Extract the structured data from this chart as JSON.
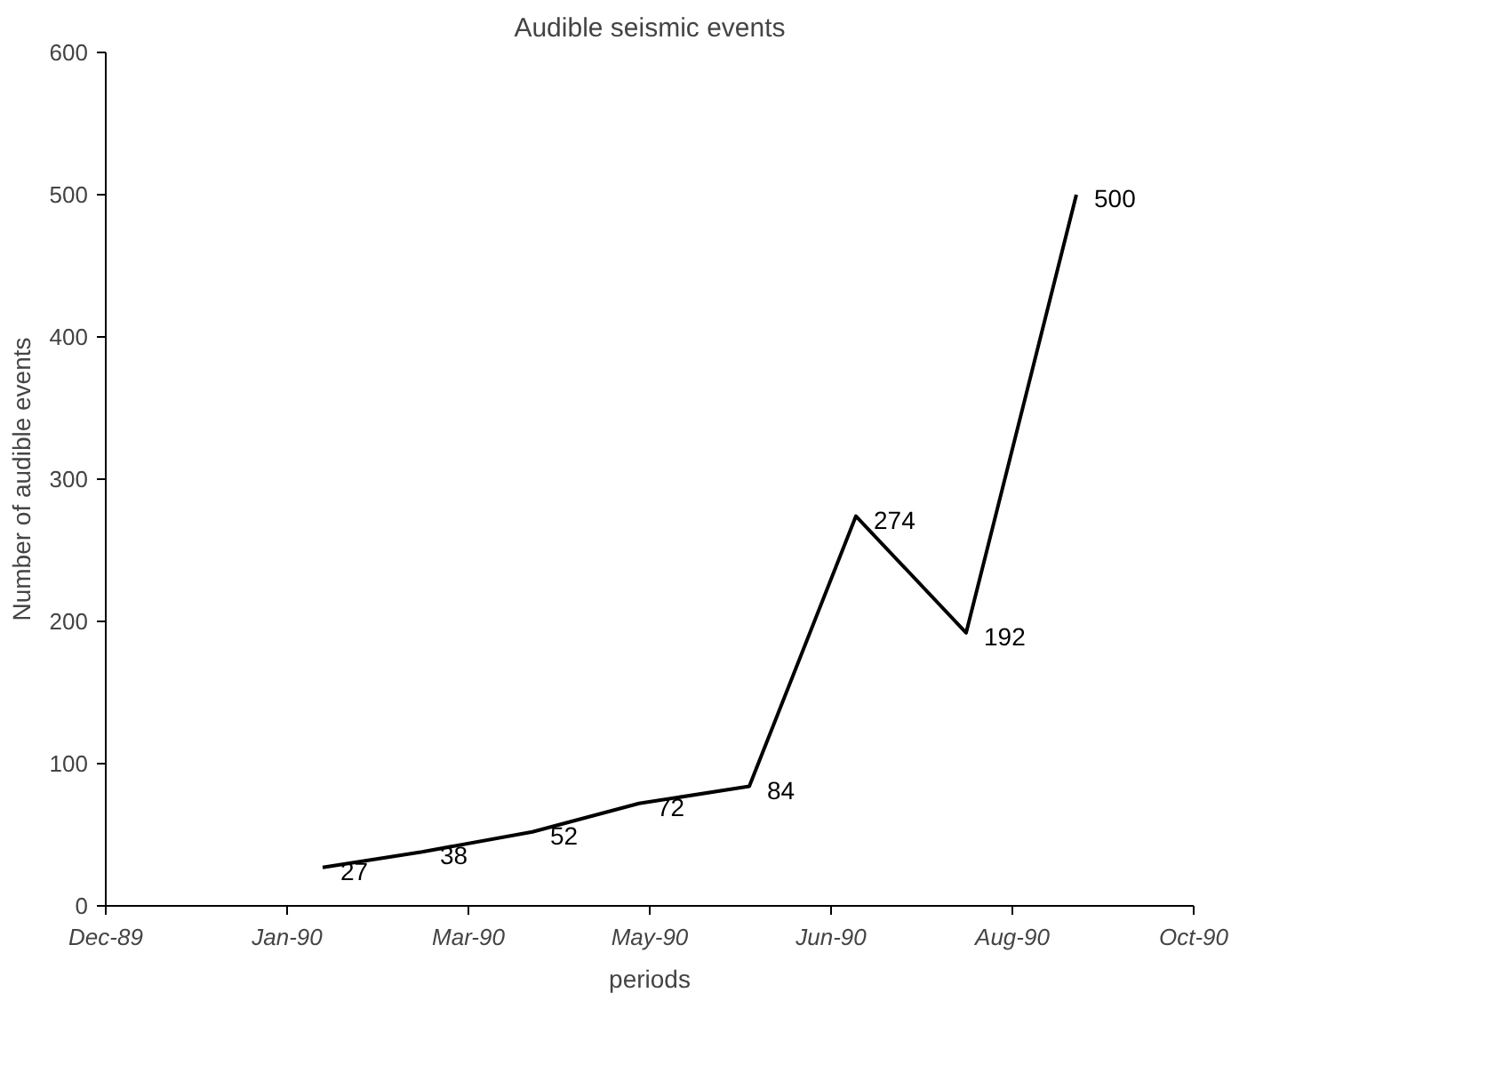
{
  "chart_data": {
    "type": "line",
    "title": "Audible seismic events",
    "xlabel": "periods",
    "ylabel": "Number of audible events",
    "x": [
      "1990-01-31",
      "1990-02-28",
      "1990-03-31",
      "1990-04-30",
      "1990-05-31",
      "1990-06-30",
      "1990-07-31",
      "1990-08-31"
    ],
    "series": [
      {
        "color": "#000000",
        "values": [
          27,
          38,
          52,
          72,
          84,
          274,
          192,
          500
        ]
      }
    ],
    "xlim": [
      "1989-12-01",
      "1990-10-03"
    ],
    "xticks": [
      {
        "value": "1989-12-01",
        "label": "Dec-89"
      },
      {
        "value": "1990-01-21",
        "label": "Jan-90"
      },
      {
        "value": "1990-03-13",
        "label": "Mar-90"
      },
      {
        "value": "1990-05-03",
        "label": "May-90"
      },
      {
        "value": "1990-06-23",
        "label": "Jun-90"
      },
      {
        "value": "1990-08-13",
        "label": "Aug-90"
      },
      {
        "value": "1990-10-03",
        "label": "Oct-90"
      }
    ],
    "ylim": [
      0,
      600
    ],
    "yticks": [
      0,
      100,
      200,
      300,
      400,
      500,
      600
    ],
    "grid": false,
    "marker": "none",
    "line_style": "solid",
    "data_labels": true
  }
}
